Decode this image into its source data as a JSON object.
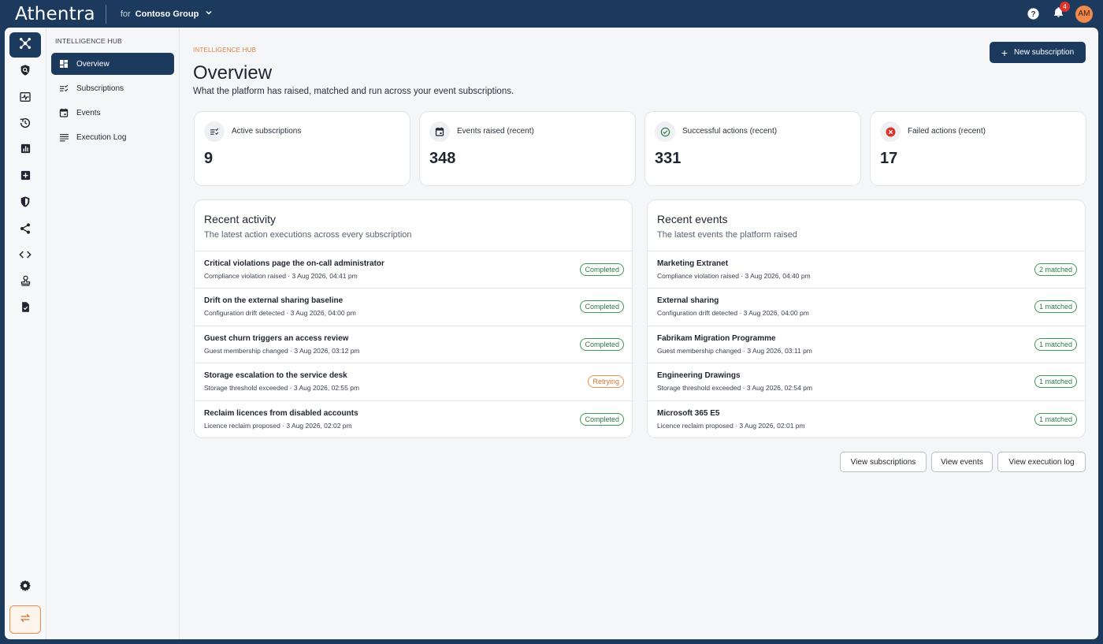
{
  "app": {
    "title": "Athentra",
    "tenant_prefix": "for",
    "tenant_name": "Contoso Group"
  },
  "header": {
    "notification_count": "4",
    "avatar_initials": "AM"
  },
  "colors": {
    "brand": "#1c3a5e",
    "accent": "#f08a4b",
    "success": "#3a9a52",
    "warning": "#e8944f",
    "danger": "#d9352a"
  },
  "rail": {
    "icons": [
      "hub-icon",
      "search-shield-icon",
      "activity-icon",
      "history-icon",
      "chart-icon",
      "add-box-icon",
      "shield-icon",
      "share-icon",
      "code-icon",
      "stamp-icon",
      "task-icon",
      "settings-icon",
      "swap-icon"
    ]
  },
  "subnav": {
    "heading": "INTELLIGENCE HUB",
    "items": [
      {
        "label": "Overview",
        "icon": "dashboard-icon"
      },
      {
        "label": "Subscriptions",
        "icon": "checklist-icon"
      },
      {
        "label": "Events",
        "icon": "calendar-icon"
      },
      {
        "label": "Execution Log",
        "icon": "log-icon"
      }
    ]
  },
  "page": {
    "eyebrow": "INTELLIGENCE HUB",
    "title": "Overview",
    "subtitle": "What the platform has raised, matched and run across your event subscriptions.",
    "new_button": "New subscription"
  },
  "stats": [
    {
      "label": "Active subscriptions",
      "value": "9",
      "icon": "checklist-icon"
    },
    {
      "label": "Events raised (recent)",
      "value": "348",
      "icon": "calendar-icon"
    },
    {
      "label": "Successful actions (recent)",
      "value": "331",
      "icon": "check-circle-icon"
    },
    {
      "label": "Failed actions (recent)",
      "value": "17",
      "icon": "error-circle-icon"
    }
  ],
  "recent_activity": {
    "title": "Recent activity",
    "subtitle": "The latest action executions across every subscription",
    "rows": [
      {
        "title": "Critical violations page the on-call administrator",
        "meta": "Compliance violation raised · 3 Aug 2026, 04:41 pm",
        "status": "Completed"
      },
      {
        "title": "Drift on the external sharing baseline",
        "meta": "Configuration drift detected · 3 Aug 2026, 04:00 pm",
        "status": "Completed"
      },
      {
        "title": "Guest churn triggers an access review",
        "meta": "Guest membership changed · 3 Aug 2026, 03:12 pm",
        "status": "Completed"
      },
      {
        "title": "Storage escalation to the service desk",
        "meta": "Storage threshold exceeded · 3 Aug 2026, 02:55 pm",
        "status": "Retrying"
      },
      {
        "title": "Reclaim licences from disabled accounts",
        "meta": "Licence reclaim proposed · 3 Aug 2026, 02:02 pm",
        "status": "Completed"
      }
    ]
  },
  "recent_events": {
    "title": "Recent events",
    "subtitle": "The latest events the platform raised",
    "rows": [
      {
        "title": "Marketing Extranet",
        "meta": "Compliance violation raised · 3 Aug 2026, 04:40 pm",
        "status": "2 matched"
      },
      {
        "title": "External sharing",
        "meta": "Configuration drift detected · 3 Aug 2026, 04:00 pm",
        "status": "1 matched"
      },
      {
        "title": "Fabrikam Migration Programme",
        "meta": "Guest membership changed · 3 Aug 2026, 03:11 pm",
        "status": "1 matched"
      },
      {
        "title": "Engineering Drawings",
        "meta": "Storage threshold exceeded · 3 Aug 2026, 02:54 pm",
        "status": "1 matched"
      },
      {
        "title": "Microsoft 365 E5",
        "meta": "Licence reclaim proposed · 3 Aug 2026, 02:01 pm",
        "status": "1 matched"
      }
    ]
  },
  "footer_buttons": {
    "subscriptions": "View subscriptions",
    "events": "View events",
    "execution_log": "View execution log"
  }
}
